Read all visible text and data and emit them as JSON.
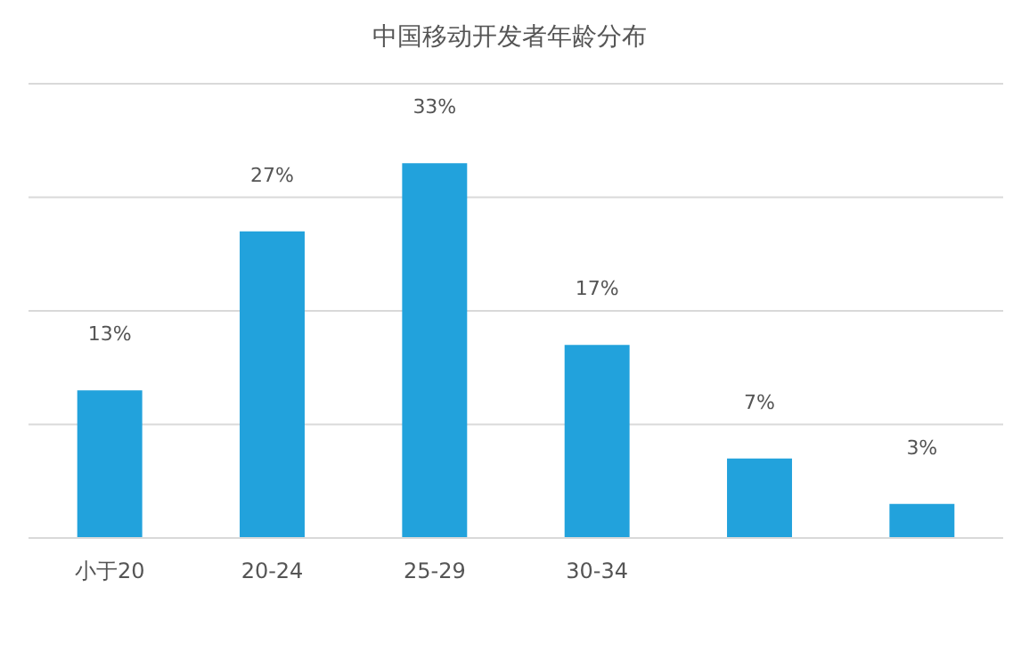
{
  "chart_data": {
    "type": "bar",
    "title": "中国移动开发者年龄分布",
    "categories": [
      "小于20",
      "20-24",
      "25-29",
      "30-34",
      null,
      null
    ],
    "values": [
      13,
      27,
      33,
      17,
      7,
      3
    ],
    "value_labels": [
      "13%",
      "27%",
      "33%",
      "17%",
      "7%",
      "3%"
    ],
    "color": "#22a2dc",
    "ylim": [
      0,
      40
    ],
    "yticks": [
      {
        "value": 0,
        "label": null
      },
      {
        "value": 10,
        "label": null
      },
      {
        "value": 20,
        "label": null
      },
      {
        "value": 30,
        "label": null
      },
      {
        "value": 40,
        "label": null
      }
    ],
    "grid": "y"
  }
}
